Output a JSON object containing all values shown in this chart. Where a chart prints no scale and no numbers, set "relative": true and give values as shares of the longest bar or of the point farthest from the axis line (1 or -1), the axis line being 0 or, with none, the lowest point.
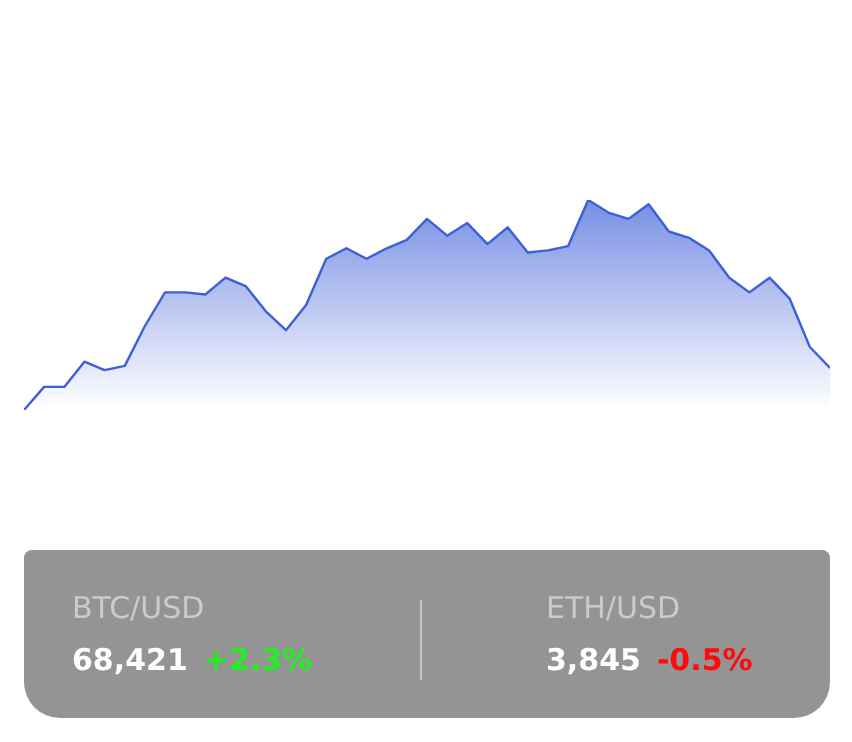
{
  "chart_data": [
    {
      "type": "area",
      "relative": true,
      "categories": [
        null,
        null,
        null,
        null,
        null,
        null,
        null,
        null,
        null,
        null,
        null,
        null,
        null,
        null,
        null,
        null,
        null,
        null,
        null,
        null,
        null,
        null,
        null,
        null,
        null,
        null,
        null,
        null,
        null,
        null,
        null,
        null,
        null,
        null,
        null,
        null,
        null,
        null,
        null,
        null,
        null
      ],
      "series": [
        {
          "color": "#3d5fd8",
          "values": [
            0,
            0.11,
            0.11,
            0.23,
            0.19,
            0.21,
            0.4,
            0.56,
            0.56,
            0.55,
            0.63,
            0.59,
            0.47,
            0.38,
            0.5,
            0.72,
            0.77,
            0.72,
            0.77,
            0.81,
            0.91,
            0.83,
            0.89,
            0.79,
            0.87,
            0.75,
            0.76,
            0.78,
            1,
            0.94,
            0.91,
            0.98,
            0.85,
            0.82,
            0.76,
            0.63,
            0.56,
            0.63,
            0.53,
            0.3,
            0.2
          ]
        }
      ]
    },
    {
      "type": "other",
      "annotations": [
        "BTC/USD",
        "68,421",
        "+2.3%",
        "ETH/USD",
        "3,845",
        "-0.5%"
      ]
    }
  ]
}
